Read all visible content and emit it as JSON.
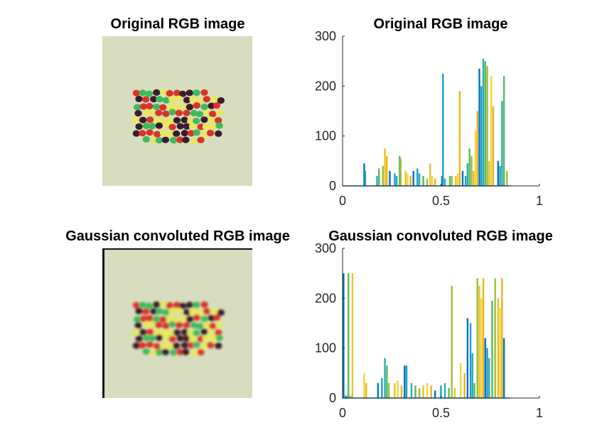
{
  "figure": {
    "panels": [
      {
        "title": "Original RGB image"
      },
      {
        "title": "Original RGB image"
      },
      {
        "title": "Gaussian convoluted RGB image"
      },
      {
        "title": "Gaussian convoluted RGB image"
      }
    ]
  },
  "colors": {
    "image_background": "#d9ddbf",
    "candy_red": "#d8352a",
    "candy_yellow": "#e8e85a",
    "candy_green": "#3dba5c",
    "candy_purple": "#3b1f2e",
    "axis": "#262626"
  },
  "chart_data": [
    {
      "type": "bar",
      "title": "Original RGB image",
      "xlim": [
        0,
        1
      ],
      "ylim": [
        0,
        300
      ],
      "xticks": [
        "0",
        "0.5",
        "1"
      ],
      "yticks": [
        "0",
        "100",
        "200",
        "300"
      ],
      "grid": false,
      "x": [
        0.11,
        0.115,
        0.175,
        0.185,
        0.205,
        0.215,
        0.22,
        0.225,
        0.24,
        0.265,
        0.275,
        0.29,
        0.295,
        0.32,
        0.33,
        0.345,
        0.36,
        0.38,
        0.39,
        0.41,
        0.43,
        0.445,
        0.455,
        0.47,
        0.505,
        0.51,
        0.52,
        0.545,
        0.555,
        0.575,
        0.585,
        0.595,
        0.61,
        0.625,
        0.635,
        0.645,
        0.655,
        0.665,
        0.675,
        0.685,
        0.695,
        0.705,
        0.715,
        0.725,
        0.735,
        0.745,
        0.755,
        0.765,
        0.79,
        0.8,
        0.81,
        0.82,
        0.835
      ],
      "values": [
        45,
        30,
        20,
        35,
        40,
        75,
        55,
        60,
        30,
        25,
        20,
        60,
        55,
        30,
        25,
        20,
        30,
        35,
        25,
        20,
        15,
        45,
        20,
        15,
        20,
        225,
        15,
        20,
        20,
        20,
        25,
        190,
        30,
        20,
        45,
        75,
        60,
        30,
        110,
        150,
        235,
        200,
        255,
        250,
        240,
        50,
        220,
        160,
        50,
        40,
        170,
        220,
        30
      ]
    },
    {
      "type": "bar",
      "title": "Gaussian convoluted RGB image",
      "xlim": [
        0,
        1
      ],
      "ylim": [
        0,
        300
      ],
      "xticks": [
        "0",
        "0.5",
        "1"
      ],
      "yticks": [
        "0",
        "100",
        "200",
        "300"
      ],
      "grid": false,
      "x": [
        0.005,
        0.015,
        0.025,
        0.03,
        0.04,
        0.05,
        0.11,
        0.12,
        0.18,
        0.2,
        0.215,
        0.225,
        0.235,
        0.265,
        0.28,
        0.3,
        0.315,
        0.325,
        0.35,
        0.37,
        0.39,
        0.41,
        0.43,
        0.45,
        0.47,
        0.5,
        0.52,
        0.54,
        0.555,
        0.57,
        0.6,
        0.62,
        0.635,
        0.65,
        0.66,
        0.67,
        0.685,
        0.695,
        0.705,
        0.715,
        0.725,
        0.735,
        0.745,
        0.76,
        0.775,
        0.79,
        0.8,
        0.81,
        0.82
      ],
      "values": [
        250,
        5,
        5,
        250,
        5,
        250,
        50,
        30,
        30,
        40,
        80,
        65,
        30,
        30,
        35,
        25,
        65,
        65,
        30,
        25,
        20,
        25,
        30,
        25,
        15,
        25,
        30,
        20,
        225,
        20,
        70,
        50,
        160,
        150,
        90,
        30,
        240,
        225,
        200,
        240,
        120,
        100,
        80,
        195,
        240,
        200,
        180,
        240,
        120
      ]
    }
  ]
}
